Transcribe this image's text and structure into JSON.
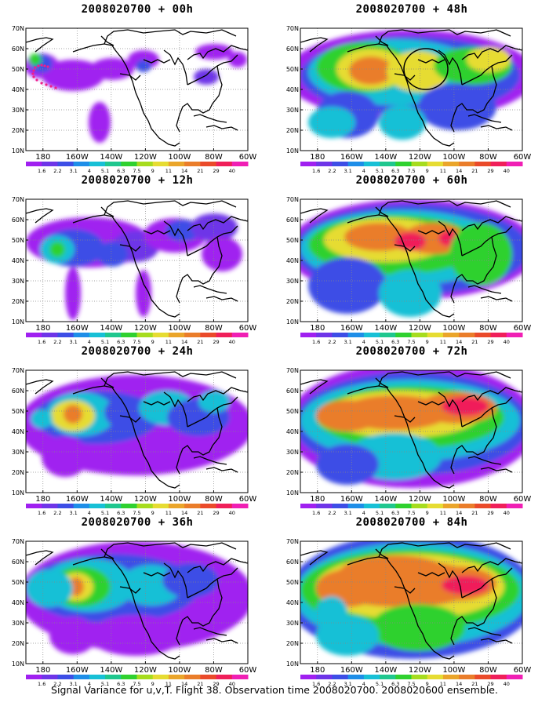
{
  "panels": [
    {
      "title": "2008020700  + 00h",
      "lead": 0
    },
    {
      "title": "2008020700  + 48h",
      "lead": 48
    },
    {
      "title": "2008020700  + 12h",
      "lead": 12
    },
    {
      "title": "2008020700  + 60h",
      "lead": 60
    },
    {
      "title": "2008020700  + 24h",
      "lead": 24
    },
    {
      "title": "2008020700  + 72h",
      "lead": 72
    },
    {
      "title": "2008020700  + 36h",
      "lead": 36
    },
    {
      "title": "2008020700  + 84h",
      "lead": 84
    }
  ],
  "map": {
    "lat_labels": [
      "70N",
      "60N",
      "50N",
      "40N",
      "30N",
      "20N",
      "10N"
    ],
    "lon_labels": [
      "180",
      "160W",
      "140W",
      "120W",
      "100W",
      "80W",
      "60W"
    ],
    "lat_range": [
      10,
      70
    ],
    "lon_range": [
      -190,
      -60
    ]
  },
  "colorbar": {
    "labels": [
      "1.6",
      "2.2",
      "3.1",
      "4",
      "5.1",
      "6.3",
      "7.5",
      "9",
      "11",
      "14",
      "21",
      "29",
      "40"
    ],
    "colors": [
      "#a020f0",
      "#6e35e8",
      "#3d4ee6",
      "#1e8ee8",
      "#17c0d6",
      "#1fc78e",
      "#2fd12f",
      "#a6dc1e",
      "#e6dc32",
      "#eaa52a",
      "#ea7d2a",
      "#ea4a2a",
      "#f01f5a",
      "#f01fb4"
    ]
  },
  "caption": "Signal Variance for u,v,T. Flight 38. Observation time 2008020700. 2008020600 ensemble."
}
